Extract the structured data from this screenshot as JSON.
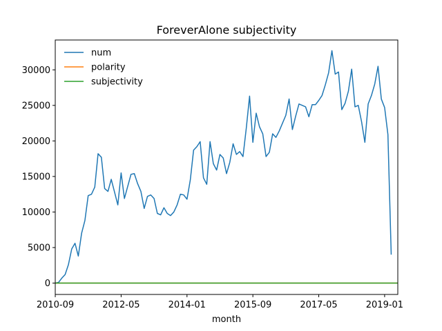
{
  "chart_data": {
    "type": "line",
    "title": "ForeverAlone subjectivity",
    "xlabel": "month",
    "ylabel": "",
    "x_tick_labels": [
      "2010-09",
      "2012-05",
      "2014-01",
      "2015-09",
      "2017-05",
      "2019-01"
    ],
    "x_range": [
      "2010-09",
      "2019-05"
    ],
    "y_ticks": [
      0,
      5000,
      10000,
      15000,
      20000,
      25000,
      30000
    ],
    "ylim": [
      -1600,
      34200
    ],
    "grid": false,
    "legend_position": "top-left",
    "series": [
      {
        "name": "num",
        "color": "#1f77b4",
        "x_start": "2010-09",
        "values": [
          0,
          100,
          700,
          1200,
          2600,
          4800,
          5600,
          3800,
          7000,
          8800,
          12300,
          12500,
          13500,
          18200,
          17700,
          13300,
          12900,
          14600,
          12800,
          11000,
          15500,
          11900,
          13600,
          15300,
          15400,
          14000,
          12900,
          10500,
          12200,
          12400,
          11900,
          9800,
          9600,
          10600,
          9800,
          9500,
          10000,
          11000,
          12500,
          12400,
          11800,
          14500,
          18700,
          19200,
          19900,
          14800,
          13900,
          19900,
          16800,
          15900,
          18100,
          17600,
          15400,
          17000,
          19600,
          18100,
          18500,
          17800,
          21800,
          26300,
          19800,
          23900,
          22000,
          21000,
          17800,
          18400,
          21000,
          20500,
          21400,
          22500,
          23600,
          25900,
          21600,
          23500,
          25200,
          25000,
          24800,
          23400,
          25100,
          25100,
          25700,
          26400,
          27900,
          29600,
          32700,
          29400,
          29700,
          24400,
          25300,
          27000,
          30100,
          24800,
          25000,
          22700,
          19800,
          25200,
          26400,
          28000,
          30500,
          25900,
          24700,
          20900,
          4000
        ]
      },
      {
        "name": "polarity",
        "color": "#ff7f0e",
        "x_start": "2010-09",
        "values": [
          0,
          0
        ]
      },
      {
        "name": "subjectivity",
        "color": "#2ca02c",
        "x_start": "2010-09",
        "values": [
          0,
          0
        ]
      }
    ]
  }
}
